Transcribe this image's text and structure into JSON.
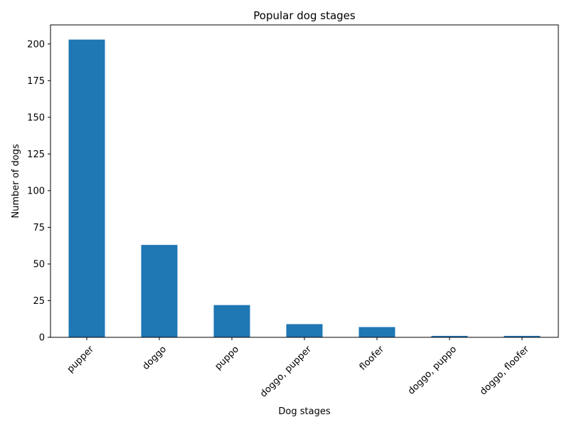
{
  "chart_data": {
    "type": "bar",
    "title": "Popular dog stages",
    "xlabel": "Dog stages",
    "ylabel": "Number of dogs",
    "categories": [
      "pupper",
      "doggo",
      "puppo",
      "doggo, pupper",
      "floofer",
      "doggo, puppo",
      "doggo, floofer"
    ],
    "values": [
      203,
      63,
      22,
      9,
      7,
      1,
      1
    ],
    "ylim": [
      0,
      213
    ],
    "yticks": [
      0,
      25,
      50,
      75,
      100,
      125,
      150,
      175,
      200
    ],
    "xtick_rotation_deg": 45,
    "grid": false,
    "legend": "none",
    "bar_color": "#1f77b4"
  }
}
